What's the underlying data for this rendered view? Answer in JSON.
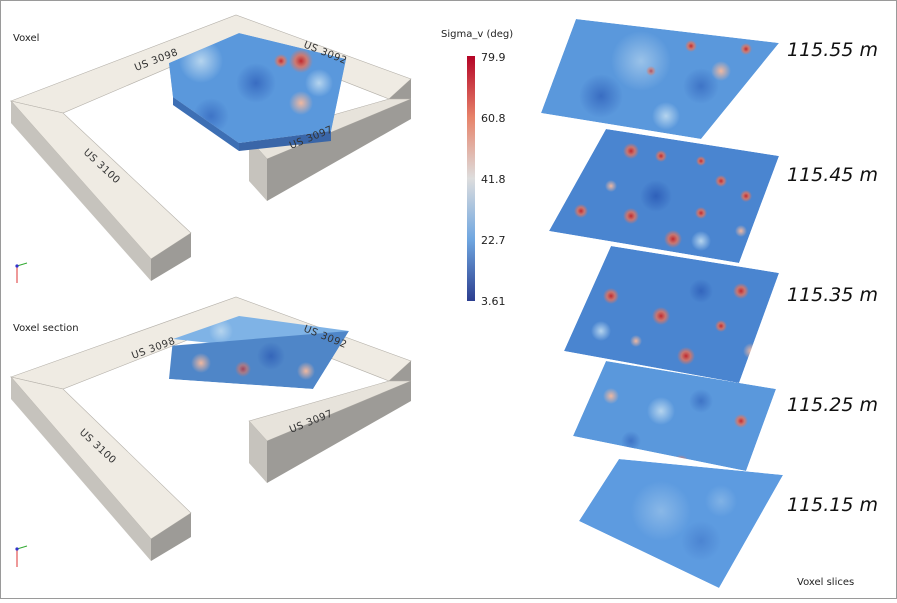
{
  "panels": {
    "voxel": {
      "title": "Voxel"
    },
    "voxel_section": {
      "title": "Voxel section"
    },
    "voxel_slices": {
      "title": "Voxel slices"
    }
  },
  "walls": {
    "top": "US 3098",
    "right_upper": "US 3092",
    "right_lower": "US 3097",
    "left": "US 3100"
  },
  "colorbar": {
    "title": "Sigma_v (deg)",
    "ticks": [
      "79.9",
      "60.8",
      "41.8",
      "22.7",
      "3.61"
    ],
    "min": 3.61,
    "max": 79.9,
    "colors": {
      "high": "#b40426",
      "mid_high": "#e7836a",
      "mid": "#dddddd",
      "mid_low": "#6fa6e0",
      "low": "#2c3e8f"
    }
  },
  "slices": [
    {
      "label": "115.55 m"
    },
    {
      "label": "115.45 m"
    },
    {
      "label": "115.35 m"
    },
    {
      "label": "115.25 m"
    },
    {
      "label": "115.15 m"
    }
  ],
  "colors": {
    "wall_top": "#efebe3",
    "wall_side": "#9d9b97",
    "wall_front": "#c6c3bd",
    "voxel_fill": "#4f8fd6"
  }
}
